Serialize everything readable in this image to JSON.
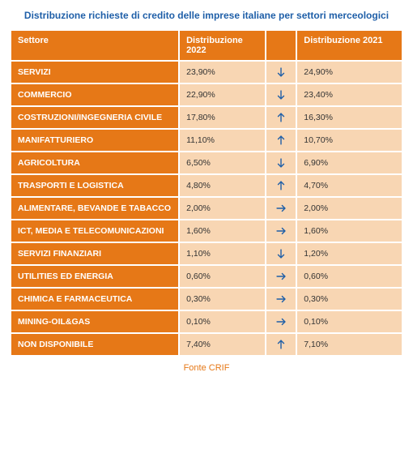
{
  "title": "Distribuzione richieste di credito delle imprese italiane per settori merceologici",
  "footer": "Fonte CRIF",
  "colors": {
    "header_bg": "#e67817",
    "header_text": "#ffffff",
    "cell_bg": "#f8d6b3",
    "cell_text": "#333333",
    "title_color": "#1f5fa8",
    "arrow_color": "#1f5fa8",
    "footer_color": "#e67817"
  },
  "columns": {
    "sector": "Settore",
    "v2022": "Distribuzione 2022",
    "arrow": "",
    "v2021": "Distribuzione 2021"
  },
  "rows": [
    {
      "sector": "SERVIZI",
      "v2022": "23,90%",
      "trend": "down",
      "v2021": "24,90%"
    },
    {
      "sector": "COMMERCIO",
      "v2022": "22,90%",
      "trend": "down",
      "v2021": "23,40%"
    },
    {
      "sector": "COSTRUZIONI/INGEGNERIA CIVILE",
      "v2022": "17,80%",
      "trend": "up",
      "v2021": "16,30%"
    },
    {
      "sector": "MANIFATTURIERO",
      "v2022": "11,10%",
      "trend": "up",
      "v2021": "10,70%"
    },
    {
      "sector": "AGRICOLTURA",
      "v2022": "6,50%",
      "trend": "down",
      "v2021": "6,90%"
    },
    {
      "sector": "TRASPORTI E LOGISTICA",
      "v2022": "4,80%",
      "trend": "up",
      "v2021": "4,70%"
    },
    {
      "sector": "ALIMENTARE, BEVANDE E TABACCO",
      "v2022": "2,00%",
      "trend": "flat",
      "v2021": "2,00%"
    },
    {
      "sector": "ICT, MEDIA E TELECOMUNICAZIONI",
      "v2022": "1,60%",
      "trend": "flat",
      "v2021": "1,60%"
    },
    {
      "sector": "SERVIZI FINANZIARI",
      "v2022": "1,10%",
      "trend": "down",
      "v2021": "1,20%"
    },
    {
      "sector": "UTILITIES ED ENERGIA",
      "v2022": "0,60%",
      "trend": "flat",
      "v2021": "0,60%"
    },
    {
      "sector": "CHIMICA E FARMACEUTICA",
      "v2022": "0,30%",
      "trend": "flat",
      "v2021": "0,30%"
    },
    {
      "sector": "MINING-OIL&GAS",
      "v2022": "0,10%",
      "trend": "flat",
      "v2021": "0,10%"
    },
    {
      "sector": "NON DISPONIBILE",
      "v2022": "7,40%",
      "trend": "up",
      "v2021": "7,10%"
    }
  ]
}
